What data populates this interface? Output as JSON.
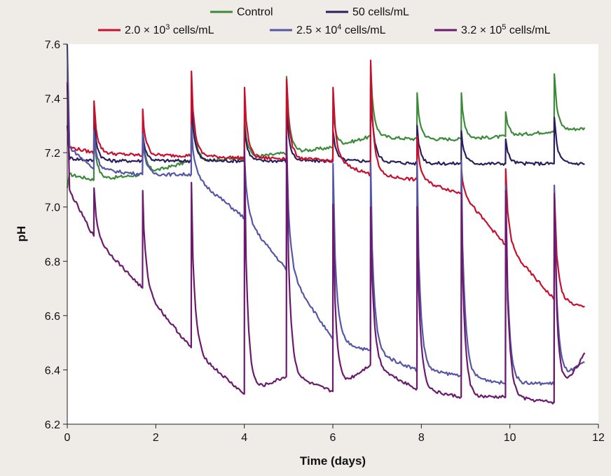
{
  "chart_data": {
    "type": "line",
    "title": "",
    "xlabel": "Time (days)",
    "ylabel": "pH",
    "xlim": [
      0,
      12
    ],
    "ylim": [
      6.2,
      7.6
    ],
    "xticks": [
      "0",
      "2",
      "4",
      "6",
      "8",
      "10",
      "12"
    ],
    "yticks": [
      "6.2",
      "6.4",
      "6.6",
      "6.8",
      "7.0",
      "7.2",
      "7.4",
      "7.6"
    ],
    "grid": false,
    "legend_position": "top",
    "series": [
      {
        "name": "Control",
        "legend_parts": [
          "Control"
        ],
        "color": "#3d8b3a",
        "baseline": [
          [
            0,
            7.07
          ],
          [
            0.05,
            7.12
          ],
          [
            0.6,
            7.1
          ],
          [
            1.7,
            7.12
          ],
          [
            2.8,
            7.17
          ],
          [
            4.0,
            7.18
          ],
          [
            5.0,
            7.2
          ],
          [
            6.0,
            7.22
          ],
          [
            6.85,
            7.26
          ],
          [
            7.9,
            7.25
          ],
          [
            8.9,
            7.25
          ],
          [
            9.9,
            7.26
          ],
          [
            11.0,
            7.28
          ],
          [
            11.7,
            7.29
          ]
        ],
        "spikes": [
          [
            0.6,
            7.28
          ],
          [
            1.7,
            7.28
          ],
          [
            2.8,
            7.45
          ],
          [
            4.0,
            7.33
          ],
          [
            4.95,
            7.48
          ],
          [
            6.0,
            7.36
          ],
          [
            6.85,
            7.52
          ],
          [
            7.9,
            7.42
          ],
          [
            8.9,
            7.42
          ],
          [
            9.9,
            7.35
          ],
          [
            11.0,
            7.49
          ]
        ]
      },
      {
        "name": "50 cells/mL",
        "legend_parts": [
          "50 cells/mL"
        ],
        "color": "#2b1e5e",
        "baseline": [
          [
            0,
            7.3
          ],
          [
            0.05,
            7.18
          ],
          [
            0.6,
            7.17
          ],
          [
            1.7,
            7.17
          ],
          [
            2.8,
            7.17
          ],
          [
            4.0,
            7.17
          ],
          [
            5.0,
            7.17
          ],
          [
            6.0,
            7.17
          ],
          [
            6.85,
            7.17
          ],
          [
            7.9,
            7.16
          ],
          [
            8.9,
            7.16
          ],
          [
            9.9,
            7.16
          ],
          [
            11.0,
            7.16
          ],
          [
            11.7,
            7.16
          ]
        ],
        "spikes": [
          [
            0.6,
            7.33
          ],
          [
            1.7,
            7.28
          ],
          [
            2.8,
            7.4
          ],
          [
            4.0,
            7.3
          ],
          [
            4.95,
            7.36
          ],
          [
            6.0,
            7.28
          ],
          [
            6.85,
            7.45
          ],
          [
            7.9,
            7.3
          ],
          [
            8.9,
            7.28
          ],
          [
            9.9,
            7.25
          ],
          [
            11.0,
            7.33
          ]
        ]
      },
      {
        "name": "2.0 × 10³ cells/mL",
        "legend_parts": [
          "2.0 × 10",
          "3",
          " cells/mL"
        ],
        "color": "#c8102e",
        "baseline": [
          [
            0,
            7.46
          ],
          [
            0.05,
            7.22
          ],
          [
            0.6,
            7.2
          ],
          [
            1.7,
            7.19
          ],
          [
            2.8,
            7.19
          ],
          [
            4.0,
            7.18
          ],
          [
            5.0,
            7.18
          ],
          [
            6.0,
            7.17
          ],
          [
            6.85,
            7.12
          ],
          [
            7.9,
            7.1
          ],
          [
            8.9,
            7.05
          ],
          [
            9.9,
            6.86
          ],
          [
            11.0,
            6.66
          ],
          [
            11.7,
            6.63
          ]
        ],
        "spikes": [
          [
            0.6,
            7.39
          ],
          [
            1.7,
            7.36
          ],
          [
            2.8,
            7.5
          ],
          [
            4.0,
            7.44
          ],
          [
            4.95,
            7.47
          ],
          [
            6.0,
            7.44
          ],
          [
            6.85,
            7.54
          ],
          [
            7.9,
            7.26
          ],
          [
            8.9,
            7.14
          ],
          [
            9.9,
            7.14
          ],
          [
            11.0,
            7.06
          ]
        ]
      },
      {
        "name": "2.5 × 10⁴ cells/mL",
        "legend_parts": [
          "2.5 × 10",
          "4",
          " cells/mL"
        ],
        "color": "#5656a6",
        "baseline": [
          [
            0,
            7.6
          ],
          [
            0.05,
            7.22
          ],
          [
            0.6,
            7.14
          ],
          [
            1.7,
            7.12
          ],
          [
            2.8,
            7.12
          ],
          [
            4.0,
            6.96
          ],
          [
            5.0,
            6.76
          ],
          [
            6.0,
            6.51
          ],
          [
            6.85,
            6.47
          ],
          [
            7.9,
            6.4
          ],
          [
            8.9,
            6.38
          ],
          [
            9.9,
            6.35
          ],
          [
            11.0,
            6.35
          ],
          [
            11.7,
            6.43
          ]
        ],
        "spikes": [
          [
            0.6,
            7.28
          ],
          [
            1.7,
            7.27
          ],
          [
            2.8,
            7.3
          ],
          [
            4.0,
            7.18
          ],
          [
            4.95,
            7.23
          ],
          [
            6.0,
            7.16
          ],
          [
            6.85,
            7.16
          ],
          [
            7.9,
            7.17
          ],
          [
            8.9,
            7.17
          ],
          [
            9.9,
            7.08
          ],
          [
            11.0,
            7.08
          ]
        ]
      },
      {
        "name": "3.2 × 10⁵ cells/mL",
        "legend_parts": [
          "3.2 × 10",
          "5",
          " cells/mL"
        ],
        "color": "#6b1a6e",
        "baseline": [
          [
            0,
            7.45
          ],
          [
            0.05,
            7.06
          ],
          [
            0.6,
            6.89
          ],
          [
            1.7,
            6.7
          ],
          [
            2.8,
            6.48
          ],
          [
            4.0,
            6.31
          ],
          [
            5.0,
            6.38
          ],
          [
            6.0,
            6.32
          ],
          [
            6.85,
            6.42
          ],
          [
            7.9,
            6.33
          ],
          [
            8.9,
            6.3
          ],
          [
            9.9,
            6.3
          ],
          [
            11.0,
            6.28
          ],
          [
            11.7,
            6.46
          ]
        ],
        "spikes": [
          [
            0.6,
            7.07
          ],
          [
            1.7,
            7.06
          ],
          [
            2.8,
            7.09
          ],
          [
            4.0,
            7.21
          ],
          [
            4.95,
            7.26
          ],
          [
            6.0,
            7.01
          ],
          [
            6.85,
            7.0
          ],
          [
            7.9,
            7.0
          ],
          [
            8.9,
            7.05
          ],
          [
            9.9,
            7.06
          ],
          [
            11.0,
            7.05
          ]
        ]
      }
    ]
  }
}
